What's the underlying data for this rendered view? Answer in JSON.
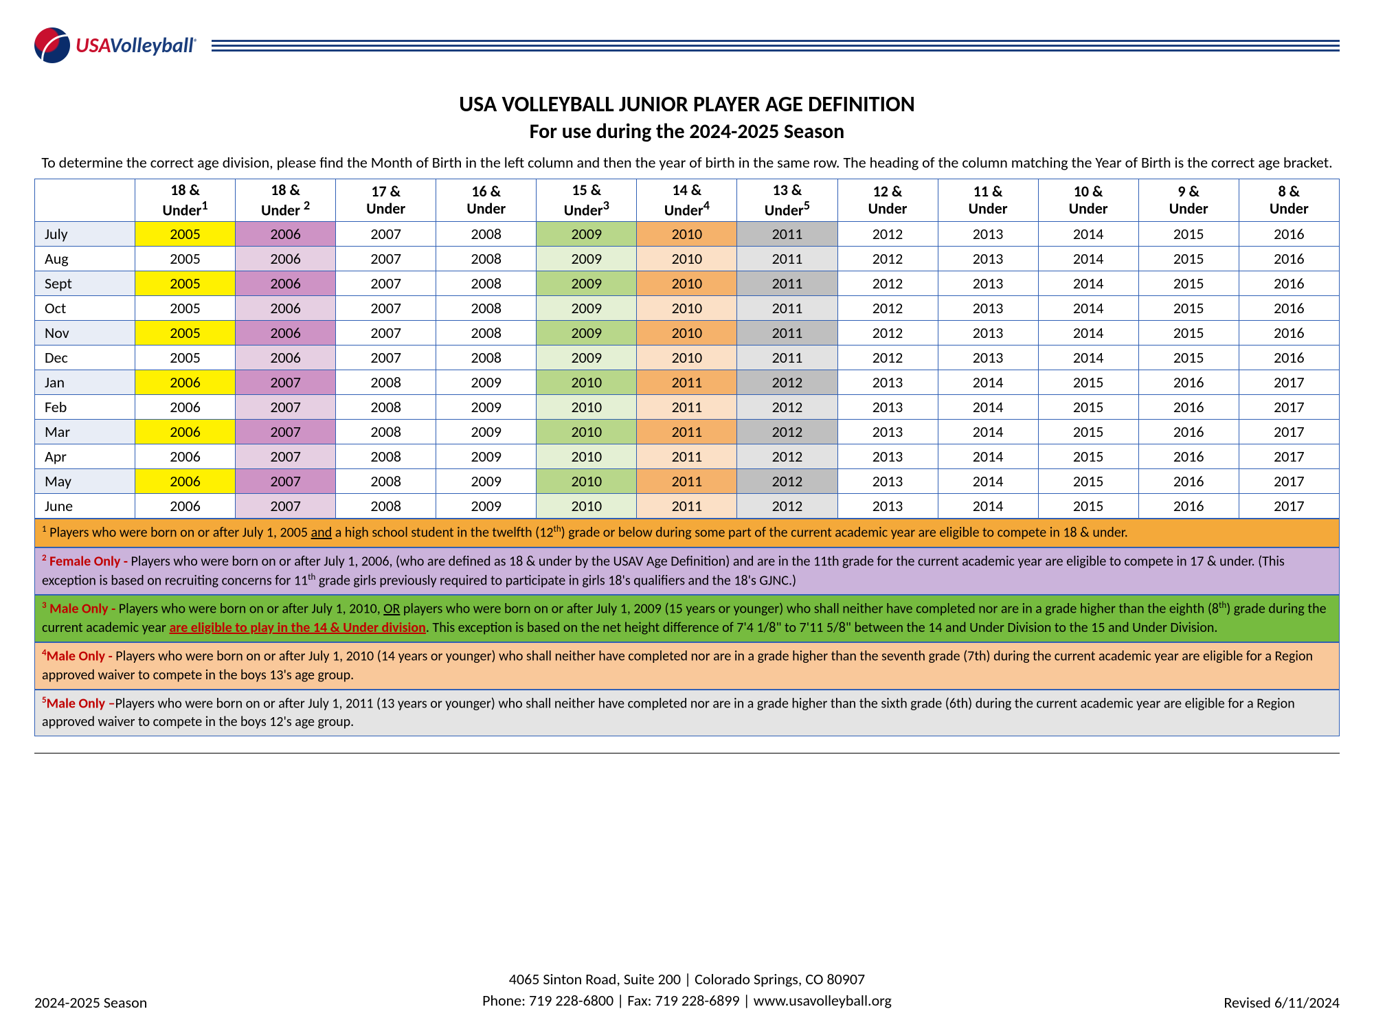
{
  "logo": {
    "usa": "USA",
    "vb": "Volleyball",
    "reg": "®"
  },
  "title": {
    "main": "USA VOLLEYBALL JUNIOR PLAYER AGE DEFINITION",
    "sub": "For use during the 2024-2025 Season"
  },
  "instructions": "To determine the correct age division, please find the Month of Birth in the left column and then the year of birth in the same row. The heading of the column matching the Year of Birth is the correct age bracket.",
  "headers": [
    {
      "l1": "",
      "l2": "",
      "sup": "",
      "cls": ""
    },
    {
      "l1": "18 &",
      "l2": "Under",
      "sup": "1",
      "cls": "h18a"
    },
    {
      "l1": "18 &",
      "l2": "Under ",
      "sup": "2",
      "cls": "h18b"
    },
    {
      "l1": "17 &",
      "l2": "Under",
      "sup": "",
      "cls": ""
    },
    {
      "l1": "16 &",
      "l2": "Under",
      "sup": "",
      "cls": ""
    },
    {
      "l1": "15 &",
      "l2": "Under",
      "sup": "3",
      "cls": "h15"
    },
    {
      "l1": "14 &",
      "l2": "Under",
      "sup": "4",
      "cls": "h14"
    },
    {
      "l1": "13 &",
      "l2": "Under",
      "sup": "5",
      "cls": "h13"
    },
    {
      "l1": "12 &",
      "l2": "Under",
      "sup": "",
      "cls": ""
    },
    {
      "l1": "11 &",
      "l2": "Under",
      "sup": "",
      "cls": ""
    },
    {
      "l1": "10 &",
      "l2": "Under",
      "sup": "",
      "cls": ""
    },
    {
      "l1": "9 &",
      "l2": "Under",
      "sup": "",
      "cls": ""
    },
    {
      "l1": "8 &",
      "l2": "Under",
      "sup": "",
      "cls": ""
    }
  ],
  "months": [
    "July",
    "Aug",
    "Sept",
    "Oct",
    "Nov",
    "Dec",
    "Jan",
    "Feb",
    "Mar",
    "Apr",
    "May",
    "June"
  ],
  "rows": [
    [
      "2005",
      "2006",
      "2007",
      "2008",
      "2009",
      "2010",
      "2011",
      "2012",
      "2013",
      "2014",
      "2015",
      "2016"
    ],
    [
      "2005",
      "2006",
      "2007",
      "2008",
      "2009",
      "2010",
      "2011",
      "2012",
      "2013",
      "2014",
      "2015",
      "2016"
    ],
    [
      "2005",
      "2006",
      "2007",
      "2008",
      "2009",
      "2010",
      "2011",
      "2012",
      "2013",
      "2014",
      "2015",
      "2016"
    ],
    [
      "2005",
      "2006",
      "2007",
      "2008",
      "2009",
      "2010",
      "2011",
      "2012",
      "2013",
      "2014",
      "2015",
      "2016"
    ],
    [
      "2005",
      "2006",
      "2007",
      "2008",
      "2009",
      "2010",
      "2011",
      "2012",
      "2013",
      "2014",
      "2015",
      "2016"
    ],
    [
      "2005",
      "2006",
      "2007",
      "2008",
      "2009",
      "2010",
      "2011",
      "2012",
      "2013",
      "2014",
      "2015",
      "2016"
    ],
    [
      "2006",
      "2007",
      "2008",
      "2009",
      "2010",
      "2011",
      "2012",
      "2013",
      "2014",
      "2015",
      "2016",
      "2017"
    ],
    [
      "2006",
      "2007",
      "2008",
      "2009",
      "2010",
      "2011",
      "2012",
      "2013",
      "2014",
      "2015",
      "2016",
      "2017"
    ],
    [
      "2006",
      "2007",
      "2008",
      "2009",
      "2010",
      "2011",
      "2012",
      "2013",
      "2014",
      "2015",
      "2016",
      "2017"
    ],
    [
      "2006",
      "2007",
      "2008",
      "2009",
      "2010",
      "2011",
      "2012",
      "2013",
      "2014",
      "2015",
      "2016",
      "2017"
    ],
    [
      "2006",
      "2007",
      "2008",
      "2009",
      "2010",
      "2011",
      "2012",
      "2013",
      "2014",
      "2015",
      "2016",
      "2017"
    ],
    [
      "2006",
      "2007",
      "2008",
      "2009",
      "2010",
      "2011",
      "2012",
      "2013",
      "2014",
      "2015",
      "2016",
      "2017"
    ]
  ],
  "col_tints": {
    "1": [
      "c18a-a",
      "c18a-b"
    ],
    "2": [
      "c18b-a",
      "c18b-b"
    ],
    "5": [
      "c15-a",
      "c15-b"
    ],
    "6": [
      "c14-a",
      "c14-b"
    ],
    "7": [
      "c13-a",
      "c13-b"
    ]
  },
  "notes": {
    "n1": {
      "sup": "1",
      "pre": " Players who were born on or after July 1, 2005 ",
      "u": "and",
      "post": " a high school student in the twelfth (12",
      "supi": "th",
      "tail": ") grade or below during some part of the current academic year are eligible to compete in 18 & under."
    },
    "n2": {
      "sup": "2",
      "lead": " Female Only - ",
      "t1": "Players who were born on or after July 1, 2006, (who are defined as 18 & under by the USAV Age Definition) and are in the 11th grade for the current academic year are eligible to compete in 17 & under.  (This exception is based on recruiting concerns for 11",
      "supi": "th",
      "t2": " grade girls previously required to participate in girls 18's qualifiers and the 18's GJNC.)"
    },
    "n3": {
      "sup": "3",
      "lead": " Male Only - ",
      "t1": "Players who were born on or after July 1, 2010, ",
      "u1": "OR",
      "t2": " players who were born on or after July 1, 2009 (15 years or younger) who shall neither have completed nor are in a grade higher than the eighth (8",
      "supi": "th",
      "t3": ") grade during the current academic year ",
      "u2": "are eligible to play in the 14 & Under division",
      "t4": ".  This exception is based on the net height difference of 7'4 1/8\" to 7'11 5/8\" between the 14 and Under Division to the 15 and Under Division."
    },
    "n4": {
      "sup": "4",
      "lead": "Male Only - ",
      "text": "Players who were born on or after July 1, 2010 (14 years or younger) who shall neither have completed nor are in a grade higher than the seventh grade (7th) during the current academic year are eligible for a Region approved waiver to compete in the boys 13's age group."
    },
    "n5": {
      "sup": "5",
      "lead": "Male Only –",
      "text": "Players who were born on or after July 1, 2011 (13 years or younger) who shall neither have completed nor are in a grade higher than the sixth grade (6th) during the current academic year are eligible for a Region approved waiver to compete in the boys 12's age group."
    }
  },
  "footer": {
    "addr": "4065 Sinton Road, Suite 200  |  Colorado Springs, CO  80907",
    "contact": "Phone:  719 228-6800  |  Fax:  719 228-6899  |  www.usavolleyball.org",
    "left": "2024-2025 Season",
    "right": "Revised 6/11/2024"
  }
}
